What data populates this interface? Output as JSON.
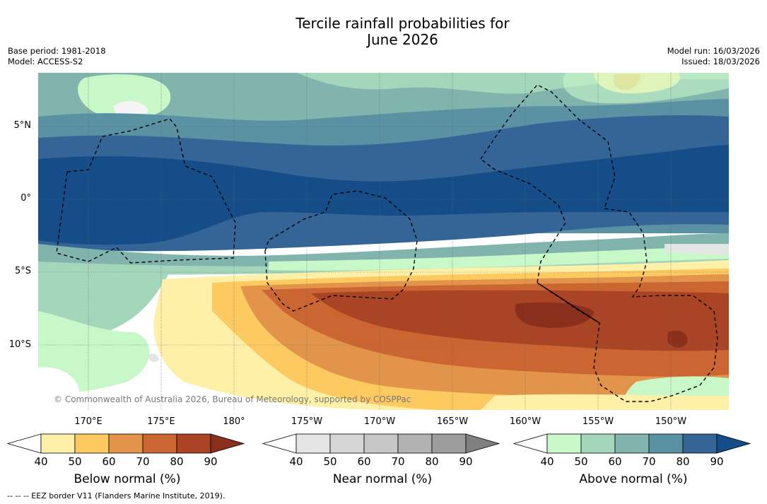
{
  "title_line1": "Tercile rainfall probabilities for",
  "title_line2": "June 2026",
  "base_period": "Base period: 1981-2018",
  "model": "Model: ACCESS-S2",
  "model_run": "Model run: 16/03/2026",
  "issued": "Issued: 18/03/2026",
  "copyright": "© Commonwealth of Australia 2026, Bureau of Meteorology, supported by COSPPac",
  "lat_labels": [
    "5°N",
    "0°",
    "5°S",
    "10°S"
  ],
  "lon_labels": [
    "170°E",
    "175°E",
    "180°",
    "175°W",
    "170°W",
    "165°W",
    "160°W",
    "155°W",
    "150°W"
  ],
  "colorbars": [
    {
      "label": "Below normal (%)",
      "ticks": [
        "40",
        "50",
        "60",
        "70",
        "80",
        "90"
      ],
      "colors": [
        "#ffffff",
        "#fff0a8",
        "#fdca62",
        "#e2944a",
        "#cb6531",
        "#a94424",
        "#8a2f1c"
      ]
    },
    {
      "label": "Near normal (%)",
      "ticks": [
        "40",
        "50",
        "60",
        "70",
        "80",
        "90"
      ],
      "colors": [
        "#ffffff",
        "#e4e4e4",
        "#d6d6d6",
        "#c6c6c6",
        "#b1b1b1",
        "#9c9c9c",
        "#808080"
      ]
    },
    {
      "label": "Above normal (%)",
      "ticks": [
        "40",
        "50",
        "60",
        "70",
        "80",
        "90"
      ],
      "colors": [
        "#ffffff",
        "#c8f7c8",
        "#a3d6bb",
        "#80b4ad",
        "#5a91a3",
        "#356597",
        "#154d88"
      ]
    }
  ],
  "footer": "--  --  -- EEZ border V11 (Flanders Marine Institute, 2019)."
}
